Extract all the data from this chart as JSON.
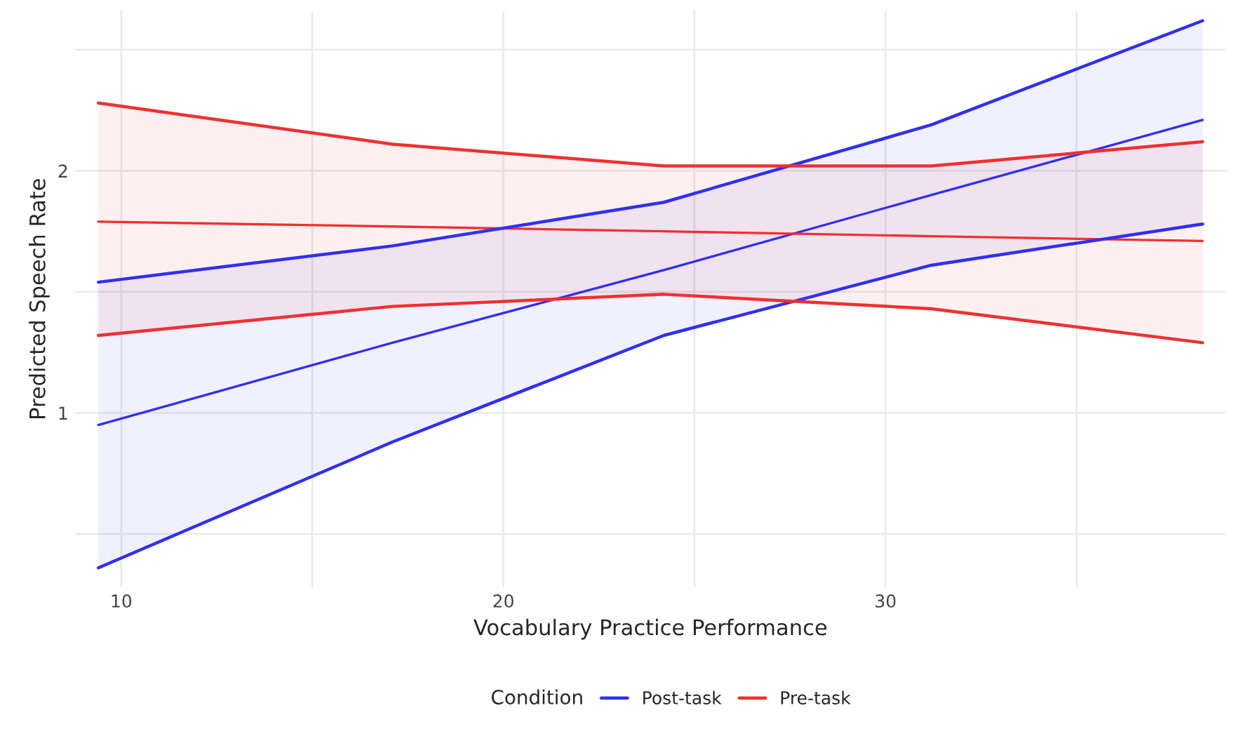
{
  "chart_data": {
    "type": "line",
    "xlabel": "Vocabulary Practice Performance",
    "ylabel": "Predicted Speech Rate",
    "legend_title": "Condition",
    "legend": "bottom",
    "grid": true,
    "x": [
      9.4,
      17.1,
      24.2,
      31.2,
      38.3
    ],
    "series": [
      {
        "name": "Post-task",
        "color": "#3030f0",
        "values": [
          0.95,
          1.29,
          1.59,
          1.9,
          2.21
        ],
        "lower": [
          0.36,
          0.88,
          1.32,
          1.61,
          1.78
        ],
        "upper": [
          1.54,
          1.69,
          1.87,
          2.19,
          2.62
        ]
      },
      {
        "name": "Pre-task",
        "color": "#f03030",
        "values": [
          1.79,
          1.77,
          1.75,
          1.73,
          1.71
        ],
        "lower": [
          1.32,
          1.44,
          1.49,
          1.43,
          1.29
        ],
        "upper": [
          2.28,
          2.11,
          2.02,
          2.02,
          2.12
        ]
      },
      {
        "color": "#3030f0",
        "values": [
          0.36,
          0.88,
          1.32,
          1.61,
          1.78
        ]
      },
      {
        "color": "#3030f0",
        "values": [
          1.54,
          1.69,
          1.87,
          2.19,
          2.62
        ]
      },
      {
        "color": "#f03030",
        "values": [
          1.32,
          1.44,
          1.49,
          1.43,
          1.29
        ]
      },
      {
        "color": "#f03030",
        "values": [
          2.28,
          2.11,
          2.02,
          2.02,
          2.12
        ]
      }
    ],
    "xlim": [
      8.8,
      38.9
    ],
    "ylim": [
      0.28,
      2.66
    ],
    "xticks": [
      10,
      {
        "value": 15,
        "label": null
      },
      20,
      {
        "value": 25,
        "label": null
      },
      30,
      {
        "value": 35,
        "label": null
      }
    ],
    "yticks": [
      {
        "value": 0.5,
        "label": null
      },
      1,
      {
        "value": 1.5,
        "label": null
      },
      2,
      {
        "value": 2.5,
        "label": null
      }
    ]
  }
}
